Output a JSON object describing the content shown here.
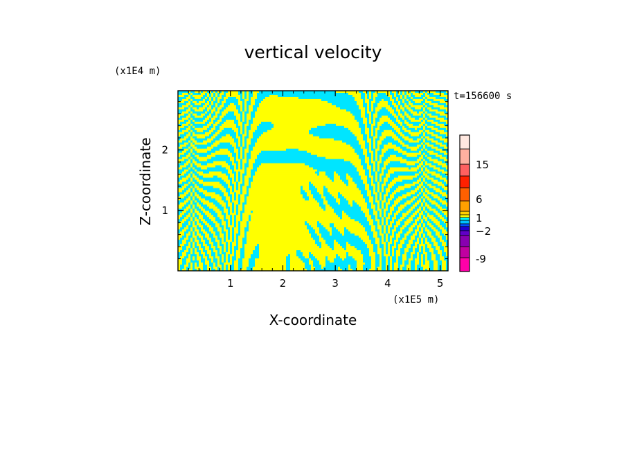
{
  "chart_data": {
    "type": "heatmap",
    "title": "vertical velocity",
    "xlabel": "X-coordinate",
    "ylabel": "Z-coordinate",
    "x_unit": "(x1E5 m)",
    "y_unit": "(x1E4 m)",
    "time_label": "t=156600 s",
    "xlim": [
      0,
      5.15
    ],
    "ylim": [
      0,
      2.98
    ],
    "x_ticks": [
      1,
      2,
      3,
      4,
      5
    ],
    "y_ticks": [
      1,
      2
    ],
    "x_tick_labels": [
      "1",
      "2",
      "3",
      "4",
      "5"
    ],
    "y_tick_labels": [
      "1",
      "2"
    ],
    "colorbar": {
      "levels": [
        {
          "color": "#ff00a8"
        },
        {
          "color": "#c000a0"
        },
        {
          "color": "#8800b0"
        },
        {
          "color": "#6000c8"
        },
        {
          "color": "#2000d0"
        },
        {
          "color": "#0050ff"
        },
        {
          "color": "#00c0ff"
        },
        {
          "color": "#00ffff"
        },
        {
          "color": "#ffff00"
        },
        {
          "color": "#ffd000"
        },
        {
          "color": "#ffa000"
        },
        {
          "color": "#ff6000"
        },
        {
          "color": "#ff2000"
        },
        {
          "color": "#ff6060"
        },
        {
          "color": "#ffb0a0"
        },
        {
          "color": "#ffe8e0"
        }
      ],
      "tick_labels": [
        {
          "value": -9,
          "label": "-9"
        },
        {
          "value": -2,
          "label": "−2"
        },
        {
          "value": 1,
          "label": "1"
        },
        {
          "value": 6,
          "label": "6"
        },
        {
          "value": 15,
          "label": "15"
        }
      ]
    },
    "field_colors": {
      "positive": "#ffff00",
      "negative": "#00e5ff"
    }
  }
}
